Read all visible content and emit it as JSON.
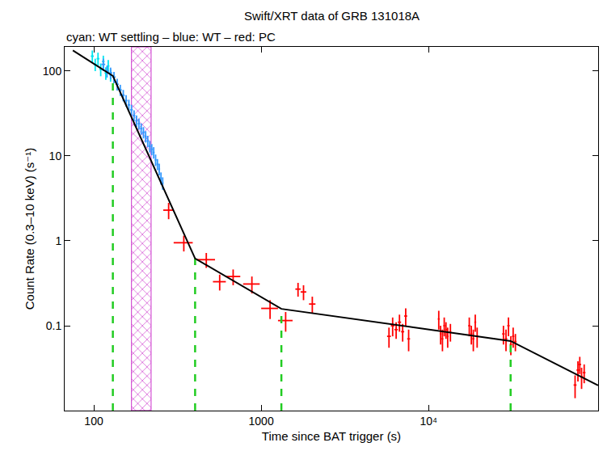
{
  "chart_data": {
    "type": "scatter",
    "title": "Swift/XRT data of GRB 131018A",
    "subtitle": "cyan: WT settling – blue: WT – red: PC",
    "x_label": "Time since BAT trigger (s)",
    "y_label": "Count Rate (0.3–10 keV) (s⁻¹)",
    "log": true,
    "grid": false,
    "xlim": [
      67,
      103000
    ],
    "ylim": [
      0.01,
      193
    ],
    "xticks": [
      100,
      1000,
      {
        "value": 10000,
        "label": "10⁴"
      }
    ],
    "yticks": [
      0.1,
      1,
      10,
      100
    ],
    "series": [
      {
        "name": "WT settling",
        "color": "#00e5ee",
        "x": [
          98,
          102,
          106,
          110,
          114,
          118,
          122,
          126
        ],
        "x_err": [
          2,
          2,
          2,
          2,
          2,
          2,
          2,
          2
        ],
        "values": [
          150,
          120,
          140,
          105,
          130,
          95,
          115,
          90
        ],
        "y_err": [
          25,
          20,
          25,
          18,
          22,
          16,
          20,
          15
        ]
      },
      {
        "name": "WT",
        "color": "#3399ff",
        "x": [
          114,
          120,
          126,
          132,
          138,
          144,
          150,
          156,
          162,
          168,
          174,
          180,
          186,
          192,
          198,
          204,
          210,
          216,
          222,
          228,
          234,
          240,
          246,
          252,
          258
        ],
        "x_err": [
          3,
          3,
          3,
          3,
          3,
          3,
          3,
          3,
          3,
          3,
          3,
          3,
          3,
          3,
          3,
          3,
          3,
          3,
          3,
          3,
          3,
          3,
          3,
          3,
          3
        ],
        "values": [
          120,
          100,
          95,
          85,
          70,
          60,
          52,
          45,
          40,
          35,
          30,
          26,
          24,
          21,
          19,
          17,
          15,
          13,
          12,
          11,
          9,
          8,
          7,
          5.5,
          4.8
        ],
        "y_err": [
          20,
          16,
          15,
          13,
          11,
          9,
          8,
          7,
          6,
          5,
          4.5,
          4,
          3.6,
          3.2,
          2.9,
          2.6,
          2.3,
          2,
          1.8,
          1.7,
          1.4,
          1.2,
          1.1,
          0.9,
          0.8
        ]
      },
      {
        "name": "PC",
        "color": "#ff0000",
        "x": [
          280,
          345,
          470,
          565,
          680,
          880,
          1130,
          1400,
          1660,
          1790,
          2020,
          5800,
          6100,
          6400,
          6700,
          7000,
          7300,
          7600,
          11500,
          11800,
          12100,
          12400,
          12700,
          13000,
          13500,
          17500,
          18000,
          18500,
          19000,
          19500,
          28000,
          29000,
          30000,
          31000,
          32000,
          33000,
          75000,
          78000,
          80000,
          82000,
          85000
        ],
        "x_err": [
          20,
          45,
          60,
          50,
          70,
          100,
          130,
          140,
          60,
          70,
          90,
          150,
          150,
          150,
          150,
          150,
          150,
          150,
          150,
          150,
          150,
          150,
          150,
          150,
          150,
          250,
          250,
          250,
          250,
          250,
          500,
          500,
          500,
          500,
          500,
          500,
          1500,
          1500,
          1500,
          1500,
          1500
        ],
        "values": [
          2.3,
          0.95,
          0.6,
          0.33,
          0.38,
          0.31,
          0.16,
          0.115,
          0.27,
          0.25,
          0.18,
          0.075,
          0.1,
          0.09,
          0.11,
          0.085,
          0.13,
          0.07,
          0.12,
          0.08,
          0.07,
          0.1,
          0.09,
          0.075,
          0.085,
          0.1,
          0.08,
          0.07,
          0.11,
          0.075,
          0.08,
          0.07,
          0.1,
          0.06,
          0.075,
          0.065,
          0.02,
          0.03,
          0.035,
          0.025,
          0.028
        ],
        "y_err": [
          0.5,
          0.2,
          0.12,
          0.07,
          0.08,
          0.07,
          0.04,
          0.03,
          0.05,
          0.05,
          0.04,
          0.02,
          0.025,
          0.02,
          0.025,
          0.02,
          0.03,
          0.02,
          0.03,
          0.02,
          0.02,
          0.025,
          0.02,
          0.02,
          0.02,
          0.025,
          0.02,
          0.02,
          0.025,
          0.02,
          0.02,
          0.02,
          0.025,
          0.015,
          0.02,
          0.015,
          0.006,
          0.008,
          0.008,
          0.007,
          0.007
        ]
      }
    ],
    "model": {
      "type": "line",
      "color": "#000000",
      "x": [
        75,
        130,
        403,
        1320,
        30900,
        103000
      ],
      "values": [
        175,
        88,
        0.62,
        0.158,
        0.066,
        0.0198
      ]
    },
    "breaks": {
      "color": "#22cc22",
      "line_style": "dash",
      "x": [
        130,
        403,
        1320,
        30900
      ]
    },
    "excluded": {
      "color": "#cc33cc",
      "x": [
        168,
        220
      ]
    }
  }
}
